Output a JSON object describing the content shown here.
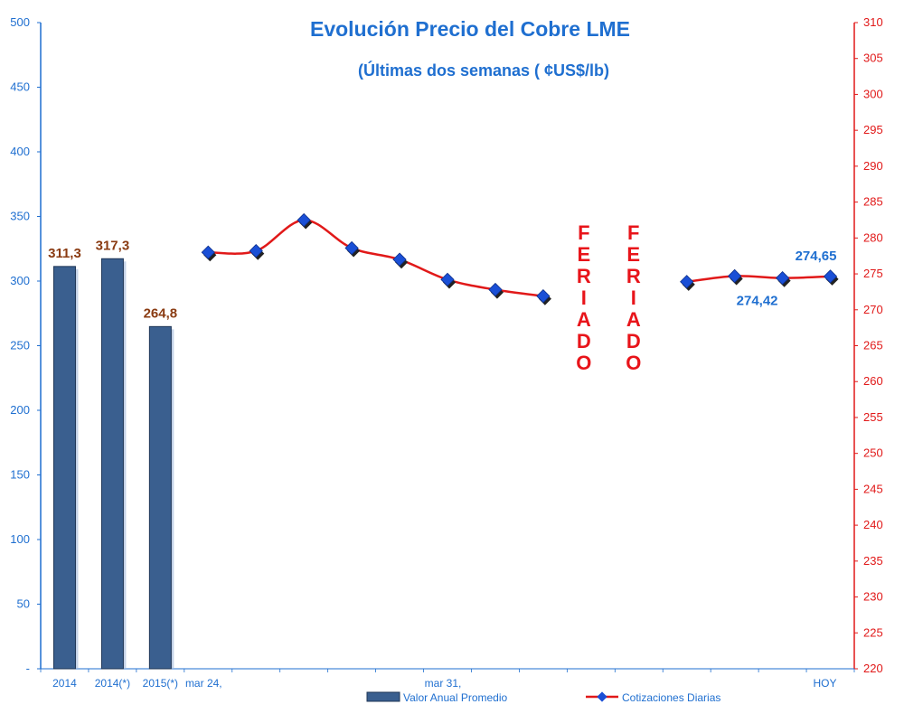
{
  "chart_data": {
    "type": "bar+line",
    "title": "Evolución Precio del Cobre LME",
    "subtitle": "(Últimas dos semanas ( ¢US$/lb)",
    "y_left": {
      "min": 0,
      "max": 500,
      "step": 50,
      "color": "#1f6fd0",
      "ticks": [
        "-",
        "50",
        "100",
        "150",
        "200",
        "250",
        "300",
        "350",
        "400",
        "450",
        "500"
      ]
    },
    "y_right": {
      "min": 220,
      "max": 310,
      "step": 5,
      "color": "#e11919",
      "ticks": [
        "220",
        "225",
        "230",
        "235",
        "240",
        "245",
        "250",
        "255",
        "260",
        "265",
        "270",
        "275",
        "280",
        "285",
        "290",
        "295",
        "300",
        "305",
        "310"
      ]
    },
    "bars": {
      "name": "Valor Anual Promedio",
      "color": "#3a5f8f",
      "categories": [
        "2014",
        "2014(*)",
        "2015(*)"
      ],
      "values": [
        311.3,
        317.3,
        264.8
      ],
      "labels": [
        "311,3",
        "317,3",
        "264,8"
      ]
    },
    "line": {
      "name": "Cotizaciones Diarias",
      "color": "#e11919",
      "marker_color": "#1a4fd6",
      "slots": 13,
      "points": [
        {
          "slot": 0,
          "value": 278.0
        },
        {
          "slot": 1,
          "value": 278.2
        },
        {
          "slot": 2,
          "value": 282.5
        },
        {
          "slot": 3,
          "value": 278.6
        },
        {
          "slot": 4,
          "value": 277.0
        },
        {
          "slot": 5,
          "value": 274.2
        },
        {
          "slot": 6,
          "value": 272.8
        },
        {
          "slot": 7,
          "value": 271.9
        },
        {
          "slot": 10,
          "value": 273.9
        },
        {
          "slot": 11,
          "value": 274.7
        },
        {
          "slot": 12,
          "value": 274.42
        },
        {
          "slot": 13,
          "value": 274.65
        }
      ],
      "point_labels": [
        {
          "slot": 12,
          "text": "274,42"
        },
        {
          "slot": 13,
          "text": "274,65"
        }
      ]
    },
    "x_labels": [
      {
        "slot": 0,
        "text": "mar 24,"
      },
      {
        "slot": 5,
        "text": "mar 31,"
      },
      {
        "slot": 13,
        "text": "HOY"
      }
    ],
    "annotations": [
      {
        "text": "FERIADO",
        "slot": 8
      },
      {
        "text": "FERIADO",
        "slot": 9
      }
    ],
    "legend": {
      "position": "bottom",
      "items": [
        "Valor Anual Promedio",
        "Cotizaciones Diarias"
      ]
    }
  }
}
